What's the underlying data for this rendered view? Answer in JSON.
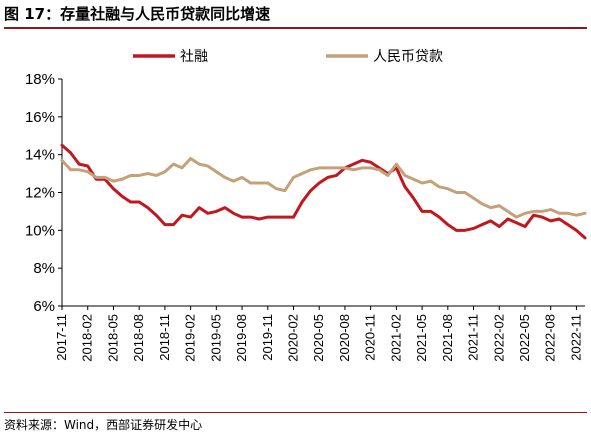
{
  "title": "图 17：存量社融与人民币贷款同比增速",
  "source": "资料来源：Wind，西部证券研发中心",
  "chart_data": {
    "type": "line",
    "title": "图 17：存量社融与人民币贷款同比增速",
    "xlabel": "",
    "ylabel": "",
    "ylim": [
      6,
      18
    ],
    "yticks": [
      "6%",
      "8%",
      "10%",
      "12%",
      "14%",
      "16%",
      "18%"
    ],
    "ytick_values": [
      6,
      8,
      10,
      12,
      14,
      16,
      18
    ],
    "grid": false,
    "legend": "top",
    "xtick_labels": [
      "2017-11",
      "2018-02",
      "2018-05",
      "2018-08",
      "2018-11",
      "2019-02",
      "2019-05",
      "2019-08",
      "2019-11",
      "2020-02",
      "2020-05",
      "2020-08",
      "2020-11",
      "2021-02",
      "2021-05",
      "2021-08",
      "2021-11",
      "2022-02",
      "2022-05",
      "2022-08",
      "2022-11"
    ],
    "x": [
      "2017-11",
      "2017-12",
      "2018-01",
      "2018-02",
      "2018-03",
      "2018-04",
      "2018-05",
      "2018-06",
      "2018-07",
      "2018-08",
      "2018-09",
      "2018-10",
      "2018-11",
      "2018-12",
      "2019-01",
      "2019-02",
      "2019-03",
      "2019-04",
      "2019-05",
      "2019-06",
      "2019-07",
      "2019-08",
      "2019-09",
      "2019-10",
      "2019-11",
      "2019-12",
      "2020-01",
      "2020-02",
      "2020-03",
      "2020-04",
      "2020-05",
      "2020-06",
      "2020-07",
      "2020-08",
      "2020-09",
      "2020-10",
      "2020-11",
      "2020-12",
      "2021-01",
      "2021-02",
      "2021-03",
      "2021-04",
      "2021-05",
      "2021-06",
      "2021-07",
      "2021-08",
      "2021-09",
      "2021-10",
      "2021-11",
      "2021-12",
      "2022-01",
      "2022-02",
      "2022-03",
      "2022-04",
      "2022-05",
      "2022-06",
      "2022-07",
      "2022-08",
      "2022-09",
      "2022-10",
      "2022-11",
      "2022-12"
    ],
    "series": [
      {
        "name": "社融",
        "color": "#c0181e",
        "values": [
          14.5,
          14.1,
          13.5,
          13.4,
          12.7,
          12.7,
          12.2,
          11.8,
          11.5,
          11.5,
          11.2,
          10.8,
          10.3,
          10.3,
          10.8,
          10.7,
          11.2,
          10.9,
          11.0,
          11.2,
          10.9,
          10.7,
          10.7,
          10.6,
          10.7,
          10.7,
          10.7,
          10.7,
          11.5,
          12.1,
          12.5,
          12.8,
          12.9,
          13.3,
          13.5,
          13.7,
          13.6,
          13.3,
          13.0,
          13.3,
          12.3,
          11.7,
          11.0,
          11.0,
          10.7,
          10.3,
          10.0,
          10.0,
          10.1,
          10.3,
          10.5,
          10.2,
          10.6,
          10.4,
          10.2,
          10.8,
          10.7,
          10.5,
          10.6,
          10.3,
          10.0,
          9.6
        ]
      },
      {
        "name": "人民币贷款",
        "color": "#c4a17a",
        "values": [
          13.7,
          13.2,
          13.2,
          13.1,
          12.8,
          12.8,
          12.6,
          12.7,
          12.9,
          12.9,
          13.0,
          12.9,
          13.1,
          13.5,
          13.3,
          13.8,
          13.5,
          13.4,
          13.1,
          12.8,
          12.6,
          12.8,
          12.5,
          12.5,
          12.5,
          12.2,
          12.1,
          12.8,
          13.0,
          13.2,
          13.3,
          13.3,
          13.3,
          13.3,
          13.2,
          13.3,
          13.3,
          13.2,
          12.9,
          13.5,
          12.9,
          12.7,
          12.5,
          12.6,
          12.3,
          12.2,
          12.0,
          12.0,
          11.7,
          11.4,
          11.2,
          11.3,
          11.0,
          10.7,
          10.9,
          11.0,
          11.0,
          11.1,
          10.9,
          10.9,
          10.8,
          10.9
        ]
      }
    ]
  }
}
